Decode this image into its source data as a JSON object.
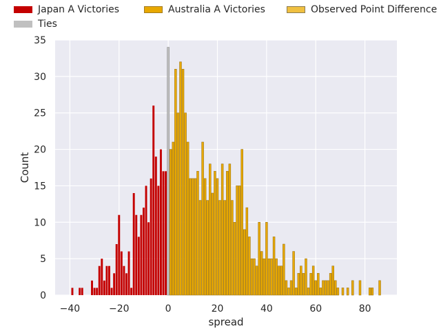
{
  "chart_data": {
    "type": "bar",
    "xlabel": "spread",
    "ylabel": "Count",
    "xlim": [
      -46,
      93
    ],
    "ylim": [
      0,
      35
    ],
    "xticks": [
      -40,
      -20,
      0,
      20,
      40,
      60,
      80
    ],
    "yticks": [
      0,
      5,
      10,
      15,
      20,
      25,
      30,
      35
    ],
    "grid": true,
    "legend_position": "top",
    "legend": [
      {
        "label": "Japan A Victories",
        "color": "#c40000"
      },
      {
        "label": "Ties",
        "color": "#c0c0c0"
      },
      {
        "label": "Australia A Victories",
        "color": "#e8a800"
      },
      {
        "label": "Observed Point Difference",
        "color": "#f0c040"
      }
    ],
    "series": [
      {
        "name": "Japan A Victories",
        "color": "#c40000",
        "x": [
          -39,
          -36,
          -35,
          -31,
          -30,
          -29,
          -28,
          -27,
          -26,
          -25,
          -24,
          -23,
          -22,
          -21,
          -20,
          -19,
          -18,
          -17,
          -16,
          -15,
          -14,
          -13,
          -12,
          -11,
          -10,
          -9,
          -8,
          -7,
          -6,
          -5,
          -4,
          -3,
          -2,
          -1
        ],
        "values": [
          1,
          1,
          1,
          2,
          1,
          1,
          4,
          5,
          2,
          4,
          4,
          1,
          3,
          7,
          11,
          6,
          4,
          3,
          6,
          1,
          14,
          11,
          8,
          11,
          12,
          15,
          10,
          16,
          26,
          19,
          15,
          20,
          17,
          17
        ]
      },
      {
        "name": "Ties",
        "color": "#c0c0c0",
        "x": [
          0
        ],
        "values": [
          34
        ]
      },
      {
        "name": "Australia A Victories",
        "color": "#e8a800",
        "x": [
          1,
          2,
          3,
          4,
          5,
          6,
          7,
          8,
          9,
          10,
          11,
          12,
          13,
          14,
          15,
          16,
          17,
          18,
          19,
          20,
          21,
          22,
          23,
          24,
          25,
          26,
          27,
          28,
          29,
          30,
          31,
          32,
          33,
          34,
          35,
          36,
          37,
          38,
          39,
          40,
          41,
          42,
          43,
          44,
          45,
          46,
          47,
          48,
          49,
          50,
          51,
          52,
          53,
          54,
          55,
          56,
          57,
          58,
          59,
          60,
          61,
          62,
          63,
          64,
          65,
          66,
          67,
          68,
          69,
          71,
          73,
          75,
          78,
          82,
          83,
          86
        ],
        "values": [
          20,
          21,
          31,
          25,
          32,
          31,
          25,
          21,
          16,
          16,
          16,
          17,
          13,
          21,
          16,
          13,
          18,
          14,
          17,
          16,
          13,
          18,
          13,
          17,
          18,
          13,
          10,
          15,
          15,
          20,
          9,
          12,
          8,
          5,
          5,
          4,
          10,
          6,
          5,
          10,
          5,
          5,
          8,
          5,
          4,
          4,
          7,
          2,
          1,
          2,
          6,
          1,
          3,
          4,
          3,
          5,
          1,
          3,
          4,
          2,
          3,
          1,
          2,
          2,
          2,
          3,
          4,
          2,
          1,
          1,
          1,
          2,
          2,
          1,
          1,
          2
        ]
      }
    ]
  }
}
